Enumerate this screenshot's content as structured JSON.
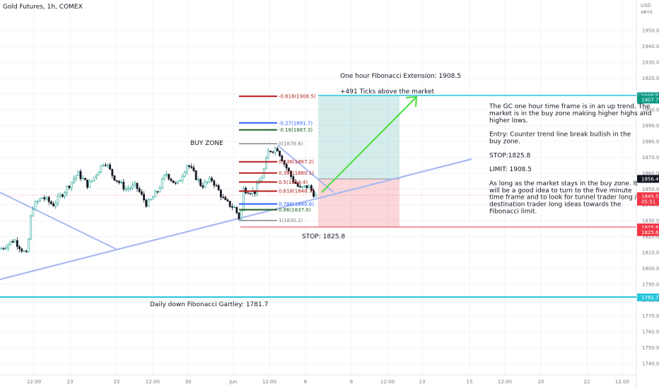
{
  "header": {
    "title": "Gold Futures, 1h, COMEX"
  },
  "axis": {
    "currency": "USD",
    "subtitle": "авто"
  },
  "chart_data": {
    "type": "candlestick",
    "y_ticks": [
      1740,
      1750,
      1760,
      1770,
      1780,
      1790,
      1800,
      1810,
      1820,
      1830,
      1840,
      1850,
      1860,
      1870,
      1880,
      1890,
      1900,
      1910,
      1920,
      1930,
      1940,
      1950
    ],
    "x_ticks": [
      "12:00",
      "23",
      "25",
      "12:00",
      "30",
      "Jun",
      "12:00",
      "6",
      "8",
      "12:00",
      "13",
      "15",
      "12:00",
      "20",
      "22",
      "12:00"
    ],
    "fib_levels": [
      {
        "label": "-0.618(1908.5)",
        "price": 1908.5,
        "color": "#b71c1c"
      },
      {
        "label": "-0.27(1891.7)",
        "price": 1891.7,
        "color": "#2962ff"
      },
      {
        "label": "-0.18(1887.3)",
        "price": 1887.3,
        "color": "#1b5e20"
      },
      {
        "label": "0(1878.6)",
        "price": 1878.6,
        "color": "#787b86"
      },
      {
        "label": "0.236(1867.2)",
        "price": 1867.2,
        "color": "#b71c1c"
      },
      {
        "label": "0.382(1860.1)",
        "price": 1860.1,
        "color": "#b71c1c"
      },
      {
        "label": "0.5(1854.4)",
        "price": 1854.4,
        "color": "#b71c1c"
      },
      {
        "label": "0.618(1848.7)",
        "price": 1848.7,
        "color": "#b71c1c"
      },
      {
        "label": "0.786(1840.6)",
        "price": 1840.6,
        "color": "#2962ff"
      },
      {
        "label": "0.86(1837.0)",
        "price": 1837.0,
        "color": "#1b5e20"
      },
      {
        "label": "1(1830.2)",
        "price": 1830.2,
        "color": "#787b86"
      }
    ],
    "annotations": {
      "extension": "One hour Fibonacci Extension: 1908.5",
      "ticks": "+491 Ticks above the market",
      "buy_zone": "BUY ZONE",
      "stop": "STOP: 1825.8",
      "gartley": "Daily down Fibonacci Gartley: 1781.7"
    },
    "notes": [
      "The GC one hour time frame is in an up trend. The",
      "market is in the buy zone making higher highs and",
      "higher lows.",
      "",
      "Entry: Counter trend line break bullish in the",
      "buy zone.",
      "",
      "STOP:1825.8",
      "",
      "LIMIT: 1908.5",
      "",
      "As long as the market stays in the buy zone. It",
      "will be a good idea to turn to the five minute",
      "time frame and to look for tunnel trader long /",
      "destination trader long ideas towards the",
      "Fibonacci limit."
    ],
    "price_labels": [
      {
        "text": "1908.5",
        "price": 1908.5,
        "color": "#26a69a"
      },
      {
        "text": "1907.7",
        "price": 1906.4,
        "color": "#089981"
      },
      {
        "text": "1856.4",
        "price": 1856.4,
        "color": "#131722"
      },
      {
        "text": "1845.5",
        "price": 1845.5,
        "color": "#f23645"
      },
      {
        "text": "05:51",
        "price": 1842.0,
        "color": "#f23645"
      },
      {
        "text": "1825.8",
        "price": 1825.8,
        "color": "#f23645"
      },
      {
        "text": "1825.6",
        "price": 1822.8,
        "color": "#f23645"
      },
      {
        "text": "1781.7",
        "price": 1781.7,
        "color": "#26c6da"
      }
    ],
    "targets": {
      "limit": 1908.5,
      "entry": 1854.4,
      "stop": 1825.8,
      "gartley": 1781.7
    }
  }
}
